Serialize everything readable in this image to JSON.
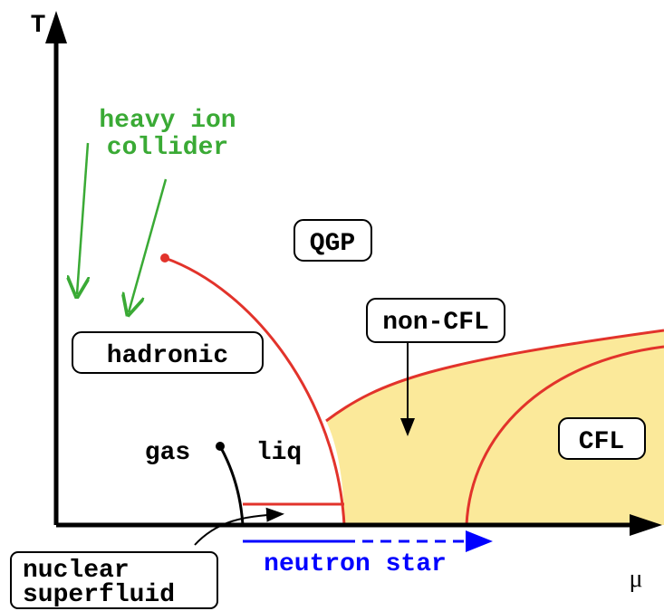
{
  "axes": {
    "y": "T",
    "x": "μ"
  },
  "annotations": {
    "collider": [
      "heavy ion",
      "collider"
    ],
    "gas": "gas",
    "liq": "liq",
    "neutron_star": "neutron star",
    "nuclear_superfluid": [
      "nuclear",
      "superfluid"
    ]
  },
  "regions": {
    "qgp": "QGP",
    "non_cfl": "non-CFL",
    "hadronic": "hadronic",
    "cfl": "CFL"
  }
}
